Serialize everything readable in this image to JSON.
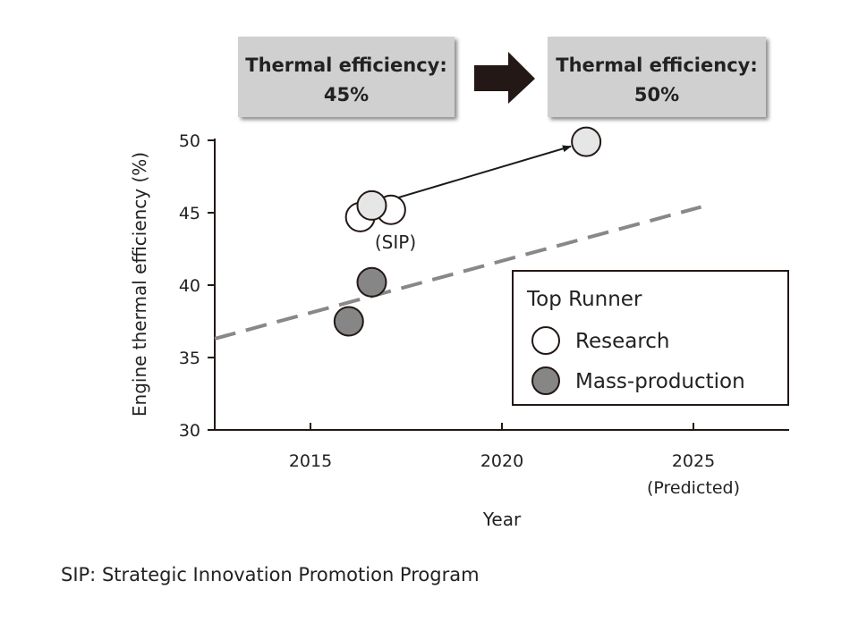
{
  "chart_data": {
    "type": "scatter",
    "title": "",
    "xlabel": "Year",
    "ylabel": "Engine thermal efficiency (%)",
    "xlim": [
      2012.5,
      2027.5
    ],
    "ylim": [
      30,
      50
    ],
    "x_ticks": [
      {
        "value": 2015,
        "label": "2015",
        "sublabel": ""
      },
      {
        "value": 2020,
        "label": "2020",
        "sublabel": ""
      },
      {
        "value": 2025,
        "label": "2025",
        "sublabel": "(Predicted)"
      }
    ],
    "y_ticks": [
      30,
      35,
      40,
      45,
      50
    ],
    "grid": false,
    "legend": {
      "title": "Top Runner",
      "position": "bottom-right",
      "entries": [
        "Research",
        "Mass-production"
      ]
    },
    "series": [
      {
        "name": "Research",
        "color": "#ffffff",
        "points": [
          {
            "x": 2016.3,
            "y": 44.7
          },
          {
            "x": 2017.1,
            "y": 45.2
          },
          {
            "x": 2016.6,
            "y": 45.5,
            "color": "#e6e6e6"
          },
          {
            "x": 2022.2,
            "y": 49.9,
            "color": "#e6e6e6"
          }
        ]
      },
      {
        "name": "Mass-production",
        "color": "#868686",
        "points": [
          {
            "x": 2016.0,
            "y": 37.5
          },
          {
            "x": 2016.6,
            "y": 40.2
          }
        ]
      }
    ],
    "trend_line": {
      "color": "#888888",
      "start": {
        "x": 2012.5,
        "y": 36.3
      },
      "end": {
        "x": 2025.2,
        "y": 45.4
      }
    },
    "arrow": {
      "from": {
        "x": 2016.6,
        "y": 45.5
      },
      "to": {
        "x": 2022.2,
        "y": 49.9
      }
    },
    "annotations": [
      {
        "text": "(SIP)",
        "x": 2017.0,
        "y": 42.8
      }
    ],
    "callouts": {
      "left": {
        "line1": "Thermal efficiency:",
        "line2": "45%"
      },
      "right": {
        "line1": "Thermal efficiency:",
        "line2": "50%"
      }
    }
  },
  "footnote": "SIP: Strategic Innovation Promotion Program"
}
